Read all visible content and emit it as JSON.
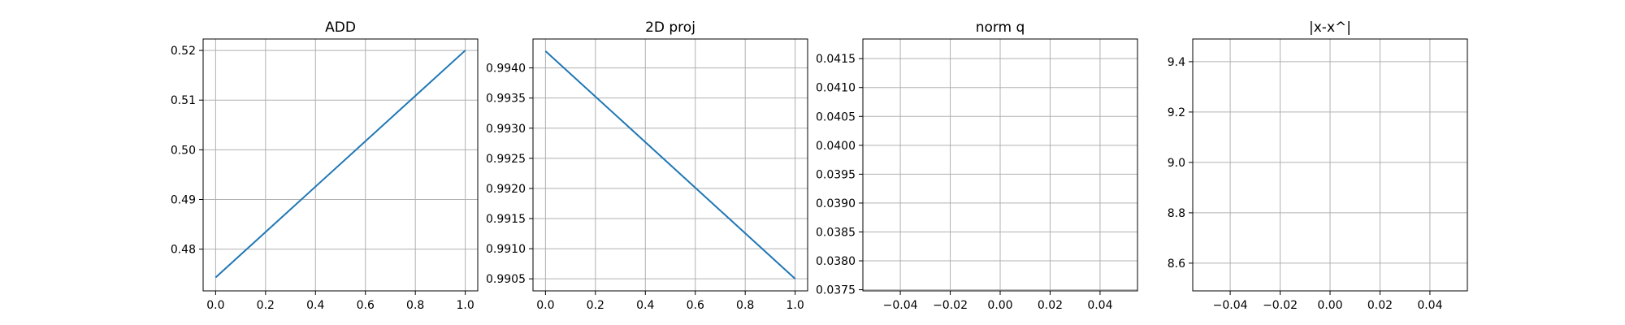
{
  "chart_data": [
    {
      "type": "line",
      "title": "ADD",
      "xlabel": "",
      "ylabel": "",
      "xlim": [
        -0.05,
        1.05
      ],
      "ylim": [
        0.4716,
        0.5223
      ],
      "grid": true,
      "xticks": [
        "0.0",
        "0.2",
        "0.4",
        "0.6",
        "0.8",
        "1.0"
      ],
      "yticks": [
        "0.48",
        "0.49",
        "0.50",
        "0.51",
        "0.52"
      ],
      "series": [
        {
          "x": [
            0,
            1
          ],
          "values": [
            0.4743,
            0.52
          ],
          "color": "#1f77b4"
        }
      ]
    },
    {
      "type": "line",
      "title": "2D proj",
      "xlabel": "",
      "ylabel": "",
      "xlim": [
        -0.05,
        1.05
      ],
      "ylim": [
        0.9903,
        0.99448
      ],
      "grid": true,
      "xticks": [
        "0.0",
        "0.2",
        "0.4",
        "0.6",
        "0.8",
        "1.0"
      ],
      "yticks": [
        "0.9905",
        "0.9910",
        "0.9915",
        "0.9920",
        "0.9925",
        "0.9930",
        "0.9935",
        "0.9940"
      ],
      "series": [
        {
          "x": [
            0,
            1
          ],
          "values": [
            0.99428,
            0.9905
          ],
          "color": "#1f77b4"
        }
      ]
    },
    {
      "type": "line",
      "title": "norm q",
      "xlabel": "",
      "ylabel": "",
      "xlim": [
        -0.055,
        0.055
      ],
      "ylim": [
        0.03748,
        0.04184
      ],
      "grid": true,
      "xticks": [
        "−0.04",
        "−0.02",
        "0.00",
        "0.02",
        "0.04"
      ],
      "yticks": [
        "0.0375",
        "0.0380",
        "0.0385",
        "0.0390",
        "0.0395",
        "0.0400",
        "0.0405",
        "0.0410",
        "0.0415"
      ],
      "series": [
        {
          "x": [],
          "values": [],
          "color": "#1f77b4"
        }
      ]
    },
    {
      "type": "line",
      "title": "|x-x^|",
      "xlabel": "",
      "ylabel": "",
      "xlim": [
        -0.055,
        0.055
      ],
      "ylim": [
        8.49,
        9.49
      ],
      "grid": true,
      "xticks": [
        "−0.04",
        "−0.02",
        "0.00",
        "0.02",
        "0.04"
      ],
      "yticks": [
        "8.6",
        "8.8",
        "9.0",
        "9.2",
        "9.4"
      ],
      "series": [
        {
          "x": [],
          "values": [],
          "color": "#1f77b4"
        }
      ]
    }
  ]
}
